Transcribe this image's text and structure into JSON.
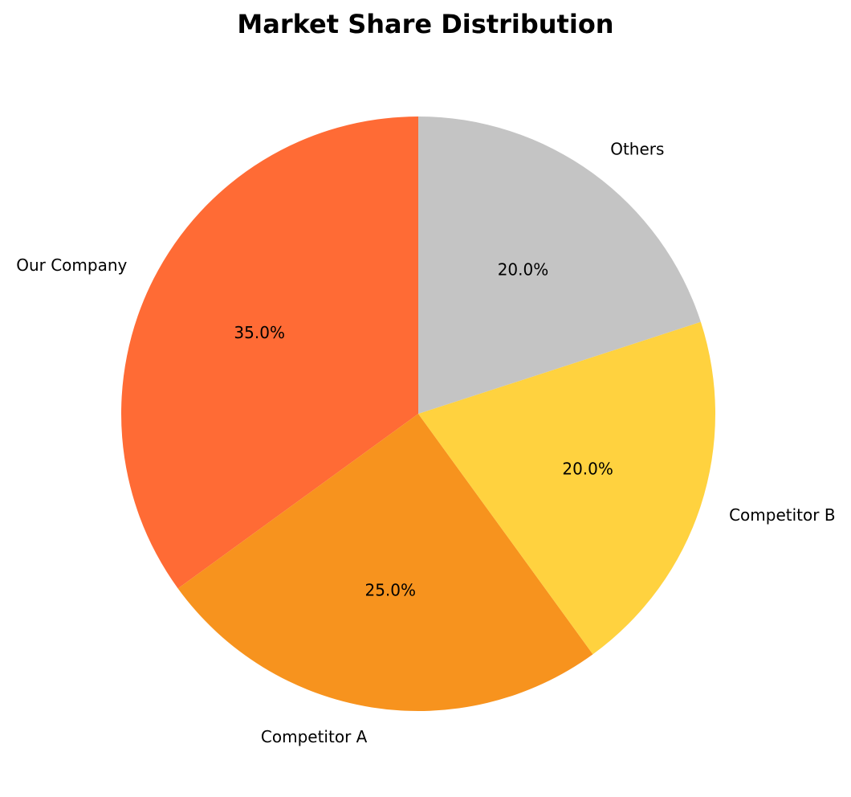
{
  "chart_data": {
    "type": "pie",
    "title": "Market Share Distribution",
    "start_angle_deg": 90,
    "direction": "counterclockwise",
    "slices": [
      {
        "label": "Our Company",
        "value": 35.0,
        "pct_label": "35.0%",
        "color": "#ff6b35"
      },
      {
        "label": "Competitor A",
        "value": 25.0,
        "pct_label": "25.0%",
        "color": "#f7931e"
      },
      {
        "label": "Competitor B",
        "value": 20.0,
        "pct_label": "20.0%",
        "color": "#ffd23f"
      },
      {
        "label": "Others",
        "value": 20.0,
        "pct_label": "20.0%",
        "color": "#c4c4c4"
      }
    ]
  }
}
